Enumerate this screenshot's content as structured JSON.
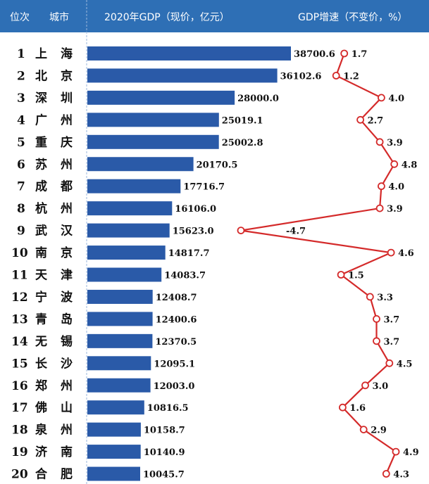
{
  "header": {
    "rank_label": "位次",
    "city_label": "城市",
    "gdp_label": "2020年GDP（现价，亿元）",
    "growth_label": "GDP增速（不变价，%）"
  },
  "colors": {
    "header_bg": "#2e6fb5",
    "bar": "#2a5aa8",
    "line": "#d42a2a",
    "divider": "#9bb7dc"
  },
  "chart_data": {
    "type": "bar",
    "series": [
      {
        "values": [
          38700.6,
          36102.6,
          28000.0,
          25019.1,
          25002.8,
          20170.5,
          17716.7,
          16106.0,
          15623.0,
          14817.7,
          14083.7,
          12408.7,
          12400.6,
          12370.5,
          12095.1,
          12003.0,
          10816.5,
          10158.7,
          10140.9,
          10045.7
        ]
      },
      {
        "type": "line",
        "values": [
          1.7,
          1.2,
          4.0,
          2.7,
          3.9,
          4.8,
          4.0,
          3.9,
          -4.7,
          4.6,
          1.5,
          3.3,
          3.7,
          3.7,
          4.5,
          3.0,
          1.6,
          2.9,
          4.9,
          4.3
        ]
      }
    ],
    "ranks": [
      "1",
      "2",
      "3",
      "4",
      "5",
      "6",
      "7",
      "8",
      "9",
      "10",
      "11",
      "12",
      "13",
      "14",
      "15",
      "16",
      "17",
      "18",
      "19",
      "20"
    ],
    "categories": [
      "上海",
      "北京",
      "深圳",
      "广州",
      "重庆",
      "苏州",
      "成都",
      "杭州",
      "武汉",
      "南京",
      "天津",
      "宁波",
      "青岛",
      "无锡",
      "长沙",
      "郑州",
      "佛山",
      "泉州",
      "济南",
      "合肥"
    ],
    "gdp_labels": [
      "38700.6",
      "36102.6",
      "28000.0",
      "25019.1",
      "25002.8",
      "20170.5",
      "17716.7",
      "16106.0",
      "15623.0",
      "14817.7",
      "14083.7",
      "12408.7",
      "12400.6",
      "12370.5",
      "12095.1",
      "12003.0",
      "10816.5",
      "10158.7",
      "10140.9",
      "10045.7"
    ],
    "growth_labels": [
      "1.7",
      "1.2",
      "4.0",
      "2.7",
      "3.9",
      "4.8",
      "4.0",
      "3.9",
      "-4.7",
      "4.6",
      "1.5",
      "3.3",
      "3.7",
      "3.7",
      "4.5",
      "3.0",
      "1.6",
      "2.9",
      "4.9",
      "4.3"
    ],
    "gdp_range": [
      0,
      38700.6
    ],
    "growth_range": [
      -4.7,
      4.9
    ],
    "grid": false
  }
}
